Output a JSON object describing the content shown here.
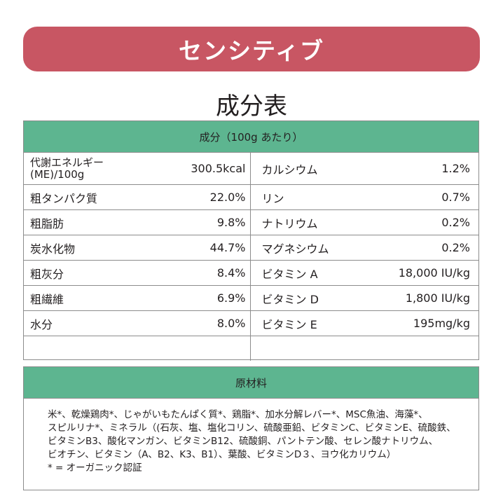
{
  "banner": {
    "title": "センシティブ",
    "color": "#c85663"
  },
  "page_title": "成分表",
  "table": {
    "header": "成分（100g あたり）",
    "header_color": "#5db590",
    "rows": [
      {
        "l_label_line1": "代謝エネルギー",
        "l_label_line2": "(ME)/100g",
        "l_value": "300.5kcal",
        "r_label": "カルシウム",
        "r_value": "1.2%"
      },
      {
        "l_label": "粗タンパク質",
        "l_value": "22.0%",
        "r_label": "リン",
        "r_value": "0.7%"
      },
      {
        "l_label": "粗脂肪",
        "l_value": "9.8%",
        "r_label": "ナトリウム",
        "r_value": "0.2%"
      },
      {
        "l_label": "炭水化物",
        "l_value": "44.7%",
        "r_label": "マグネシウム",
        "r_value": "0.2%"
      },
      {
        "l_label": "粗灰分",
        "l_value": "8.4%",
        "r_label": "ビタミン A",
        "r_value": "18,000 IU/kg"
      },
      {
        "l_label": "粗繊維",
        "l_value": "6.9%",
        "r_label": "ビタミン D",
        "r_value": "1,800 IU/kg"
      },
      {
        "l_label": "水分",
        "l_value": "8.0%",
        "r_label": "ビタミン E",
        "r_value": "195mg/kg"
      },
      {
        "l_label": "",
        "l_value": "",
        "r_label": "",
        "r_value": ""
      }
    ]
  },
  "materials": {
    "header": "原材料",
    "lines": [
      "米*、乾燥鶏肉*、じゃがいもたんぱく質*、鶏脂*、加水分解レバー*、MSC魚油、海藻*、",
      "スピルリナ*、ミネラル（(石灰、塩、塩化コリン、硫酸亜鉛、ビタミンC、ビタミンE、硫酸鉄、",
      "ビタミンB3、酸化マンガン、ビタミンB12、硫酸銅、パントテン酸、セレン酸ナトリウム、",
      "ビオチン、ビタミン（A、B2、K3、B1）、葉酸、ビタミンD３、ヨウ化カリウム）",
      "* = オーガニック認証"
    ]
  }
}
